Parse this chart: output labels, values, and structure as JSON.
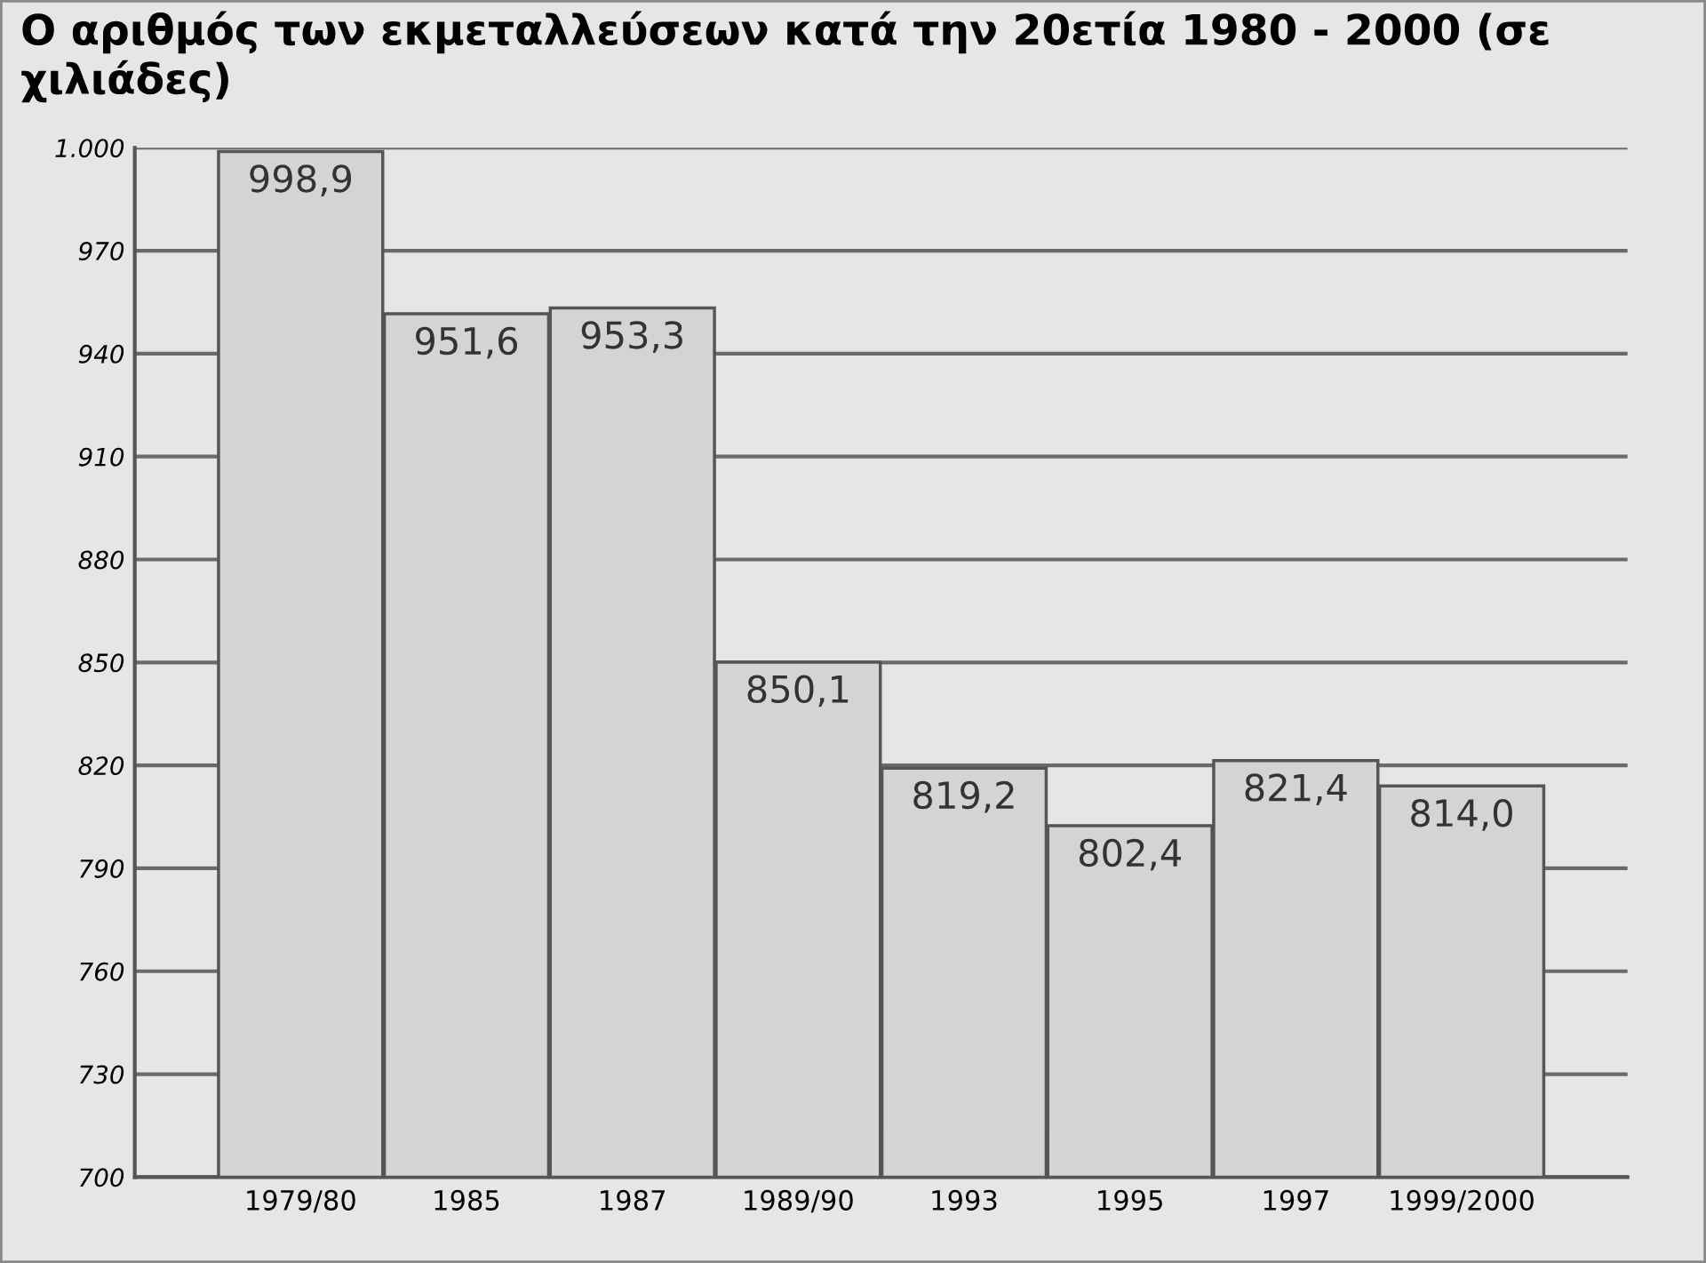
{
  "chart_data": {
    "type": "bar",
    "title": "Ο αριθμός των εκμεταλλεύσεων κατά την 20ετία 1980 - 2000 (σε χιλιάδες)",
    "categories": [
      "1979/80",
      "1985",
      "1987",
      "1989/90",
      "1993",
      "1995",
      "1997",
      "1999/2000"
    ],
    "values": [
      998.9,
      951.6,
      953.3,
      850.1,
      819.2,
      802.4,
      821.4,
      814.0
    ],
    "value_labels": [
      "998,9",
      "951,6",
      "953,3",
      "850,1",
      "819,2",
      "802,4",
      "821,4",
      "814,0"
    ],
    "color": "#d4d4d4",
    "ylim": [
      700,
      1000
    ],
    "yticks": [
      700,
      730,
      760,
      790,
      820,
      850,
      880,
      910,
      940,
      970,
      {
        "value": 1000,
        "label": "1.000"
      }
    ],
    "grid": "y"
  }
}
